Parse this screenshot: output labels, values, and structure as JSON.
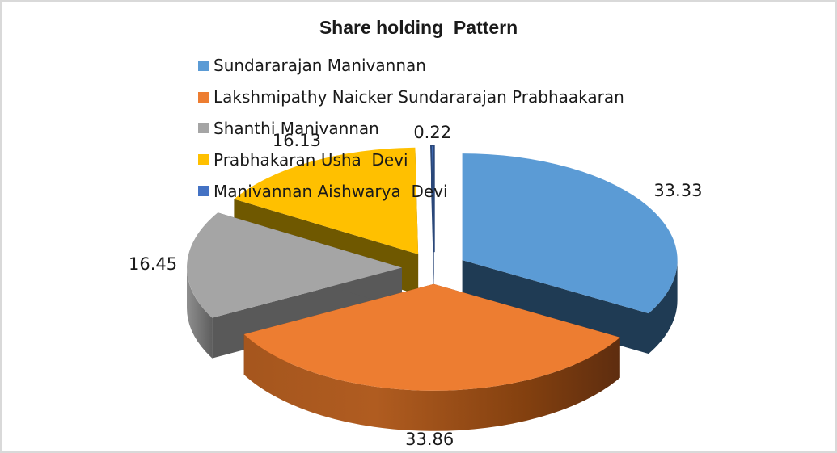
{
  "chart_data": {
    "type": "pie",
    "effect": "3d-exploded",
    "title": "Share holding  Pattern",
    "legend_position": "top-left-overlay",
    "background": "#FFFFFF",
    "border_color": "#D9D9D9",
    "series": [
      {
        "name": "Sundararajan Manivannan",
        "value": 33.33,
        "label": "33.33",
        "color": "#5B9BD5"
      },
      {
        "name": "Lakshmipathy Naicker Sundararajan Prabhaakaran",
        "value": 33.86,
        "label": "33.86",
        "color": "#ED7D31"
      },
      {
        "name": "Shanthi Manivannan",
        "value": 16.45,
        "label": "16.45",
        "color": "#A5A5A5"
      },
      {
        "name": "Prabhakaran Usha  Devi",
        "value": 16.13,
        "label": "16.13",
        "color": "#FFC000"
      },
      {
        "name": "Manivannan Aishwarya  Devi",
        "value": 0.22,
        "label": "0.22",
        "color": "#4472C4"
      }
    ]
  }
}
